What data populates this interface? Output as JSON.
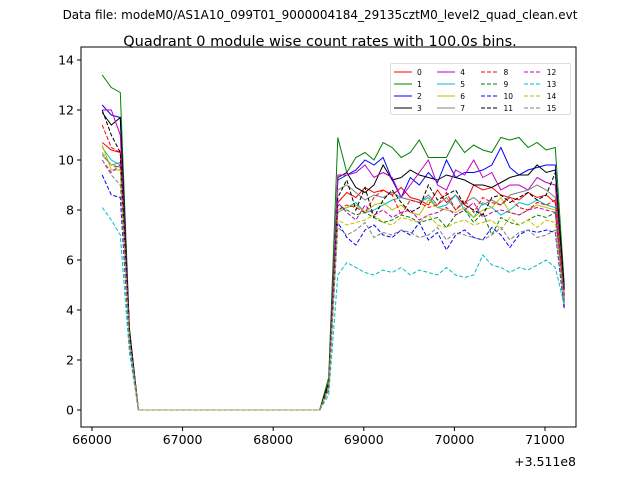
{
  "chart_data": {
    "type": "line",
    "subtitle": "Data file: modeM0/AS1A10_099T01_9000004184_29135cztM0_level2_quad_clean.evt",
    "title": "Quadrant 0 module wise count rates with 100.0s bins.",
    "xlabel": "",
    "ylabel": "",
    "x_offset_label": "+3.511e8",
    "x_start": 66113,
    "x_step": 100,
    "xlim": [
      65879,
      71342
    ],
    "ylim": [
      -0.68,
      14.52
    ],
    "xticks": [
      66000,
      67000,
      68000,
      69000,
      70000,
      71000
    ],
    "xtick_labels": [
      "66000",
      "67000",
      "68000",
      "69000",
      "70000",
      "71000"
    ],
    "yticks": [
      0,
      2,
      4,
      6,
      8,
      10,
      12,
      14
    ],
    "ytick_labels": [
      "0",
      "2",
      "4",
      "6",
      "8",
      "10",
      "12",
      "14"
    ],
    "grid": false,
    "legend_placement": "top-right",
    "series": [
      {
        "name": "0",
        "color": "#ff0000",
        "dashed": false,
        "values": [
          10.7,
          10.4,
          10.3,
          3.0,
          0,
          0,
          0,
          0,
          0,
          0,
          0,
          0,
          0,
          0,
          0,
          0,
          0,
          0,
          0,
          0,
          0,
          0,
          0,
          0,
          0,
          1.0,
          8.3,
          8.7,
          8.5,
          8.9,
          8.7,
          8.8,
          8.6,
          8.9,
          8.5,
          8.4,
          8.2,
          8.8,
          8.3,
          8.6,
          8.2,
          9.0,
          8.8,
          8.9,
          8.6,
          8.5,
          8.4,
          8.7,
          8.5,
          8.6,
          8.3,
          4.6
        ]
      },
      {
        "name": "1",
        "color": "#008000",
        "dashed": false,
        "values": [
          13.4,
          12.9,
          12.7,
          3.3,
          0,
          0,
          0,
          0,
          0,
          0,
          0,
          0,
          0,
          0,
          0,
          0,
          0,
          0,
          0,
          0,
          0,
          0,
          0,
          0,
          0,
          1.3,
          10.9,
          9.5,
          10.1,
          10.3,
          10.0,
          10.7,
          10.5,
          10.1,
          10.3,
          10.8,
          10.1,
          10.1,
          10.1,
          10.8,
          10.3,
          10.6,
          10.4,
          10.3,
          10.9,
          10.8,
          10.9,
          10.5,
          10.7,
          10.4,
          10.5,
          5.0
        ]
      },
      {
        "name": "2",
        "color": "#0000ff",
        "dashed": false,
        "values": [
          12.2,
          11.8,
          11.7,
          3.2,
          0,
          0,
          0,
          0,
          0,
          0,
          0,
          0,
          0,
          0,
          0,
          0,
          0,
          0,
          0,
          0,
          0,
          0,
          0,
          0,
          0,
          1.1,
          9.2,
          9.4,
          9.6,
          10.0,
          9.8,
          10.1,
          9.2,
          8.5,
          9.3,
          9.0,
          9.5,
          9.1,
          10.0,
          9.3,
          9.5,
          9.5,
          9.6,
          9.8,
          10.5,
          9.7,
          9.4,
          9.6,
          9.7,
          9.8,
          9.8,
          4.1
        ]
      },
      {
        "name": "3",
        "color": "#000000",
        "dashed": false,
        "values": [
          11.9,
          11.4,
          11.7,
          3.2,
          0,
          0,
          0,
          0,
          0,
          0,
          0,
          0,
          0,
          0,
          0,
          0,
          0,
          0,
          0,
          0,
          0,
          0,
          0,
          0,
          0,
          1.1,
          9.3,
          9.5,
          8.9,
          8.7,
          9.0,
          9.8,
          9.2,
          9.3,
          9.6,
          9.4,
          9.3,
          9.2,
          9.4,
          9.3,
          9.2,
          9.0,
          9.0,
          8.9,
          9.1,
          9.3,
          9.4,
          9.4,
          9.8,
          9.5,
          9.6,
          4.8
        ]
      },
      {
        "name": "4",
        "color": "#bf00bf",
        "dashed": false,
        "values": [
          12.0,
          12.0,
          11.0,
          3.1,
          0,
          0,
          0,
          0,
          0,
          0,
          0,
          0,
          0,
          0,
          0,
          0,
          0,
          0,
          0,
          0,
          0,
          0,
          0,
          0,
          0,
          1.0,
          9.4,
          9.4,
          9.5,
          9.8,
          9.3,
          9.5,
          9.3,
          8.5,
          9.0,
          9.5,
          10.0,
          9.0,
          8.8,
          9.6,
          9.4,
          10.0,
          9.3,
          9.5,
          8.8,
          9.0,
          9.0,
          8.8,
          9.3,
          9.1,
          9.0,
          4.5
        ]
      },
      {
        "name": "5",
        "color": "#00bfbf",
        "dashed": false,
        "values": [
          10.5,
          10.0,
          9.8,
          2.9,
          0,
          0,
          0,
          0,
          0,
          0,
          0,
          0,
          0,
          0,
          0,
          0,
          0,
          0,
          0,
          0,
          0,
          0,
          0,
          0,
          0,
          0.9,
          7.9,
          8.1,
          8.3,
          7.9,
          8.0,
          8.2,
          8.4,
          8.5,
          8.4,
          8.3,
          8.5,
          8.1,
          8.2,
          8.6,
          8.0,
          7.7,
          8.3,
          8.1,
          7.8,
          8.0,
          8.3,
          8.2,
          8.4,
          8.2,
          8.1,
          4.4
        ]
      },
      {
        "name": "6",
        "color": "#bfbf00",
        "dashed": false,
        "values": [
          10.6,
          9.6,
          9.6,
          2.8,
          0,
          0,
          0,
          0,
          0,
          0,
          0,
          0,
          0,
          0,
          0,
          0,
          0,
          0,
          0,
          0,
          0,
          0,
          0,
          0,
          0,
          0.9,
          8.0,
          8.1,
          8.2,
          7.9,
          8.2,
          8.3,
          8.0,
          8.2,
          7.9,
          7.8,
          8.4,
          8.1,
          8.0,
          7.9,
          8.1,
          7.7,
          8.0,
          8.1,
          8.5,
          7.9,
          7.8,
          8.0,
          8.2,
          8.1,
          8.0,
          4.4
        ]
      },
      {
        "name": "7",
        "color": "#808080",
        "dashed": false,
        "values": [
          10.2,
          9.8,
          9.9,
          2.9,
          0,
          0,
          0,
          0,
          0,
          0,
          0,
          0,
          0,
          0,
          0,
          0,
          0,
          0,
          0,
          0,
          0,
          0,
          0,
          0,
          0,
          1.0,
          8.8,
          9.0,
          8.7,
          8.4,
          8.6,
          8.5,
          8.7,
          8.5,
          8.4,
          8.3,
          8.6,
          8.2,
          8.5,
          8.0,
          8.3,
          8.5,
          8.2,
          8.4,
          8.2,
          8.6,
          8.7,
          8.8,
          9.0,
          8.8,
          8.5,
          4.6
        ]
      },
      {
        "name": "8",
        "color": "#ff0000",
        "dashed": true,
        "values": [
          11.4,
          10.5,
          10.3,
          3.0,
          0,
          0,
          0,
          0,
          0,
          0,
          0,
          0,
          0,
          0,
          0,
          0,
          0,
          0,
          0,
          0,
          0,
          0,
          0,
          0,
          0,
          1.0,
          8.0,
          8.2,
          8.1,
          7.9,
          8.5,
          8.8,
          8.6,
          7.8,
          8.4,
          8.3,
          8.1,
          8.2,
          8.7,
          8.0,
          8.4,
          7.9,
          8.5,
          8.3,
          8.2,
          8.5,
          8.1,
          8.0,
          8.3,
          8.2,
          8.4,
          4.5
        ]
      },
      {
        "name": "9",
        "color": "#008000",
        "dashed": true,
        "values": [
          10.3,
          9.8,
          9.7,
          2.8,
          0,
          0,
          0,
          0,
          0,
          0,
          0,
          0,
          0,
          0,
          0,
          0,
          0,
          0,
          0,
          0,
          0,
          0,
          0,
          0,
          0,
          0.9,
          8.2,
          8.0,
          7.8,
          7.9,
          7.7,
          7.5,
          7.6,
          7.8,
          7.7,
          7.5,
          7.6,
          7.7,
          7.3,
          7.8,
          8.0,
          7.5,
          7.9,
          7.0,
          7.7,
          7.5,
          7.4,
          7.6,
          7.8,
          7.7,
          7.9,
          4.3
        ]
      },
      {
        "name": "10",
        "color": "#0000ff",
        "dashed": true,
        "values": [
          9.4,
          8.6,
          8.5,
          2.6,
          0,
          0,
          0,
          0,
          0,
          0,
          0,
          0,
          0,
          0,
          0,
          0,
          0,
          0,
          0,
          0,
          0,
          0,
          0,
          0,
          0,
          0.8,
          7.5,
          6.9,
          6.6,
          7.2,
          7.4,
          7.0,
          6.9,
          7.2,
          7.0,
          7.5,
          6.8,
          7.1,
          6.4,
          7.0,
          7.2,
          6.9,
          6.8,
          7.3,
          7.0,
          6.5,
          7.0,
          7.2,
          7.1,
          7.2,
          7.1,
          4.0
        ]
      },
      {
        "name": "11",
        "color": "#000000",
        "dashed": true,
        "values": [
          12.0,
          11.0,
          10.3,
          3.1,
          0,
          0,
          0,
          0,
          0,
          0,
          0,
          0,
          0,
          0,
          0,
          0,
          0,
          0,
          0,
          0,
          0,
          0,
          0,
          0,
          0,
          1.0,
          8.5,
          9.2,
          8.0,
          8.9,
          7.7,
          8.4,
          8.8,
          8.3,
          7.9,
          8.1,
          9.0,
          8.4,
          8.6,
          8.8,
          8.2,
          8.0,
          7.8,
          8.5,
          8.6,
          8.3,
          8.5,
          8.7,
          8.4,
          8.6,
          9.5,
          4.8
        ]
      },
      {
        "name": "12",
        "color": "#bf00bf",
        "dashed": true,
        "values": [
          10.0,
          9.5,
          9.8,
          2.8,
          0,
          0,
          0,
          0,
          0,
          0,
          0,
          0,
          0,
          0,
          0,
          0,
          0,
          0,
          0,
          0,
          0,
          0,
          0,
          0,
          0,
          0.9,
          8.3,
          7.9,
          7.6,
          8.2,
          7.8,
          8.0,
          7.7,
          7.9,
          8.0,
          7.6,
          7.8,
          7.9,
          8.1,
          7.8,
          8.0,
          8.3,
          7.7,
          7.9,
          8.0,
          7.9,
          7.8,
          8.0,
          8.1,
          8.0,
          7.9,
          4.4
        ]
      },
      {
        "name": "13",
        "color": "#00bfbf",
        "dashed": true,
        "values": [
          8.1,
          7.6,
          7.0,
          2.3,
          0,
          0,
          0,
          0,
          0,
          0,
          0,
          0,
          0,
          0,
          0,
          0,
          0,
          0,
          0,
          0,
          0,
          0,
          0,
          0,
          0,
          0.6,
          5.4,
          5.9,
          5.7,
          5.5,
          5.4,
          5.6,
          5.5,
          5.7,
          5.4,
          5.6,
          5.5,
          5.4,
          5.7,
          5.4,
          5.3,
          5.4,
          6.2,
          5.8,
          5.7,
          5.5,
          5.7,
          5.6,
          5.8,
          6.0,
          5.7,
          4.2
        ]
      },
      {
        "name": "14",
        "color": "#bfbf00",
        "dashed": true,
        "values": [
          10.3,
          9.8,
          9.6,
          2.8,
          0,
          0,
          0,
          0,
          0,
          0,
          0,
          0,
          0,
          0,
          0,
          0,
          0,
          0,
          0,
          0,
          0,
          0,
          0,
          0,
          0,
          0.9,
          7.6,
          7.4,
          7.5,
          7.6,
          7.8,
          7.5,
          7.4,
          7.7,
          7.6,
          7.5,
          7.8,
          7.4,
          7.3,
          7.5,
          7.6,
          7.4,
          7.5,
          7.6,
          7.2,
          7.7,
          7.4,
          7.6,
          7.3,
          7.6,
          7.5,
          4.3
        ]
      },
      {
        "name": "15",
        "color": "#808080",
        "dashed": true,
        "values": [
          10.0,
          9.4,
          9.0,
          2.7,
          0,
          0,
          0,
          0,
          0,
          0,
          0,
          0,
          0,
          0,
          0,
          0,
          0,
          0,
          0,
          0,
          0,
          0,
          0,
          0,
          0,
          0.8,
          7.3,
          7.0,
          7.2,
          7.5,
          6.9,
          7.1,
          7.0,
          7.2,
          7.1,
          6.9,
          7.0,
          7.3,
          6.8,
          7.1,
          7.0,
          6.9,
          6.8,
          7.0,
          7.3,
          6.8,
          7.1,
          7.2,
          6.9,
          7.0,
          7.2,
          4.2
        ]
      }
    ]
  }
}
